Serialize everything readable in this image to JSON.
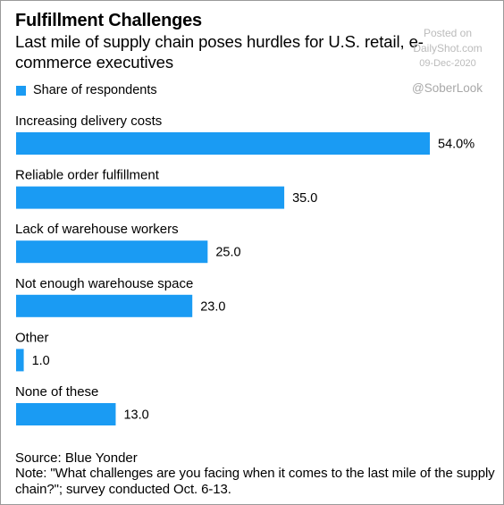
{
  "header": {
    "title": "Fulfillment Challenges",
    "subtitle": "Last mile of supply chain poses hurdles for U.S. retail, e-commerce executives"
  },
  "watermark": {
    "posted_on": "Posted on",
    "site": "DailyShot.com",
    "date": "09-Dec-2020",
    "handle": "@SoberLook"
  },
  "footer": {
    "source": "Source: Blue Yonder",
    "note": "Note: \"What challenges are you facing when it comes to the last mile of the supply chain?\"; survey conducted Oct. 6-13."
  },
  "colors": {
    "bar": "#1a9bf3",
    "text": "#000000",
    "watermark": "#b8b8b8"
  },
  "chart_data": {
    "type": "bar",
    "orientation": "horizontal",
    "categories": [
      "Increasing delivery costs",
      "Reliable order fulfillment",
      "Lack of warehouse workers",
      "Not enough warehouse space",
      "Other",
      "None of these"
    ],
    "series": [
      {
        "name": "Share of respondents",
        "values": [
          54.0,
          35.0,
          25.0,
          23.0,
          1.0,
          13.0
        ]
      }
    ],
    "value_labels": [
      "54.0%",
      "35.0",
      "25.0",
      "23.0",
      "1.0",
      "13.0"
    ],
    "xlim": [
      0,
      54
    ],
    "grid": false,
    "legend": "top-left"
  }
}
